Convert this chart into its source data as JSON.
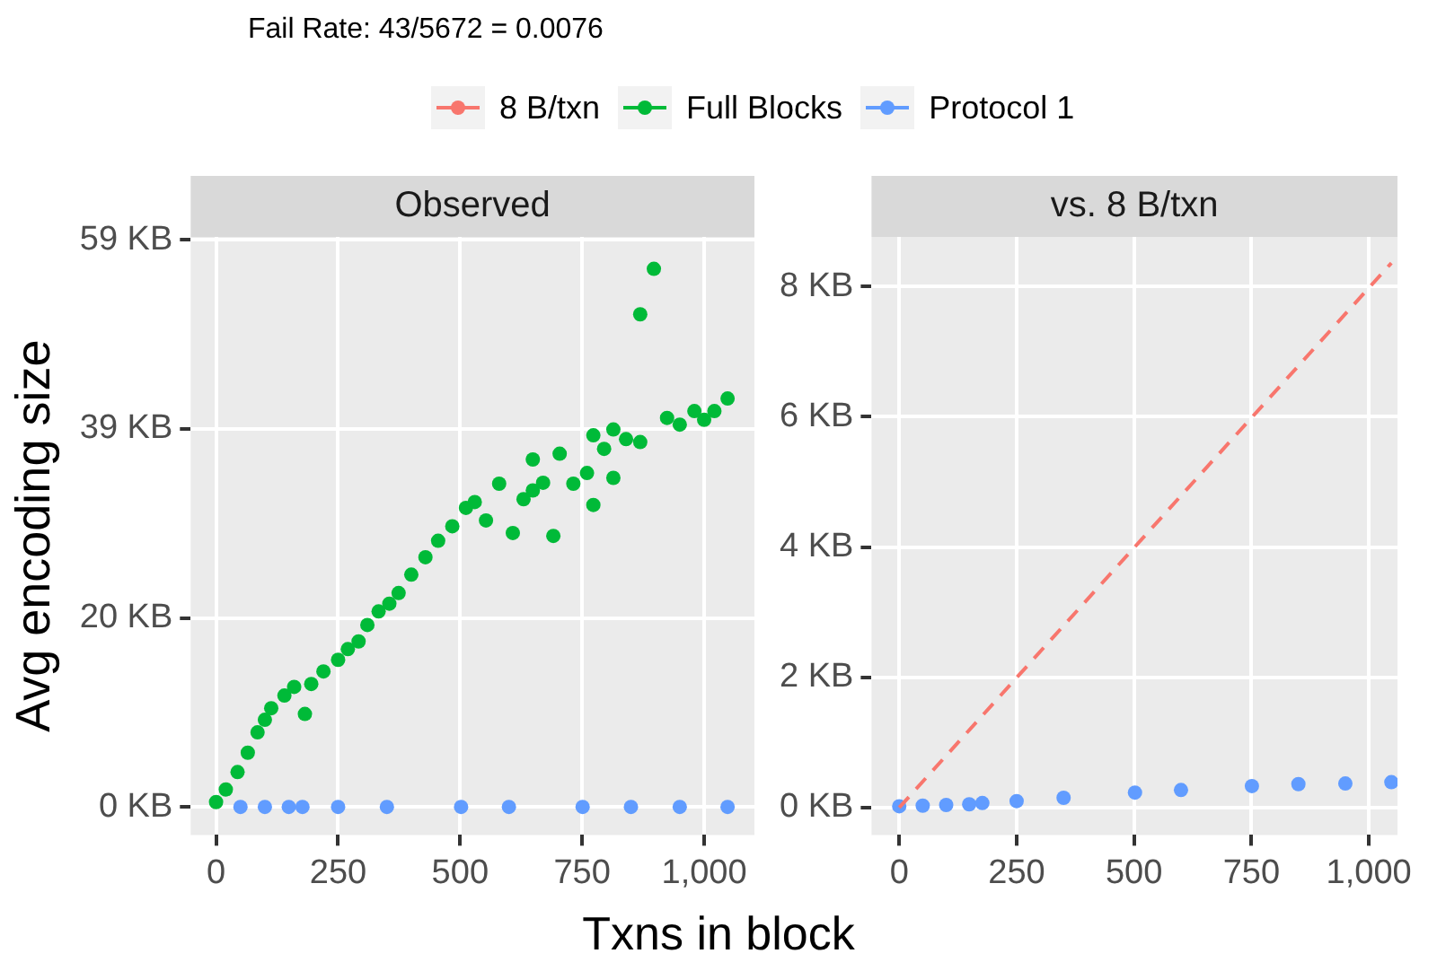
{
  "chart_data": [
    {
      "type": "scatter",
      "title": "Observed",
      "subtitle": "Fail Rate: 43/5672 = 0.0076",
      "xlabel": "Txns in block",
      "ylabel": "Avg encoding size",
      "legend": "top",
      "grid": true,
      "marker": "circle",
      "xlim": [
        -52,
        1103
      ],
      "xticks": [
        0,
        250,
        500,
        750,
        {
          "value": 1000,
          "label": "1,000"
        }
      ],
      "ylim": [
        -2.9,
        58.9
      ],
      "yticks": [
        {
          "value": 0,
          "label": "0 KB"
        },
        {
          "value": 19.53,
          "label": "20 KB"
        },
        {
          "value": 39.06,
          "label": "39 KB"
        },
        {
          "value": 58.59,
          "label": "59 KB"
        }
      ],
      "series": [
        {
          "name": "Full Blocks",
          "color": "#00ba38",
          "x": [
            0,
            20,
            44,
            65,
            85,
            100,
            113,
            140,
            160,
            182,
            195,
            220,
            250,
            270,
            292,
            310,
            333,
            355,
            374,
            400,
            429,
            455,
            484,
            512,
            530,
            553,
            580,
            608,
            630,
            649,
            649,
            670,
            691,
            704,
            732,
            760,
            773,
            773,
            795,
            814,
            814,
            840,
            869,
            869,
            897,
            924,
            950,
            980,
            1000,
            1021,
            1048
          ],
          "values": [
            0.5,
            1.8,
            3.6,
            5.6,
            7.7,
            9.0,
            10.2,
            11.5,
            12.4,
            9.6,
            12.7,
            14.0,
            15.2,
            16.3,
            17.1,
            18.8,
            20.2,
            21.0,
            22.1,
            24.0,
            25.8,
            27.5,
            29.0,
            30.9,
            31.5,
            29.6,
            33.4,
            28.3,
            31.8,
            32.7,
            35.9,
            33.5,
            28.0,
            36.5,
            33.4,
            34.5,
            31.2,
            38.4,
            37.0,
            34.0,
            39.0,
            38.0,
            50.9,
            37.7,
            55.6,
            40.2,
            39.5,
            40.9,
            40.0,
            40.9,
            42.2
          ]
        },
        {
          "name": "Protocol 1",
          "color": "#619cff",
          "x": [
            50,
            100,
            149,
            177,
            250,
            350,
            502,
            600,
            751,
            850,
            950,
            1048
          ],
          "values": [
            0,
            0,
            0,
            0,
            0,
            0,
            0,
            0,
            0,
            0,
            0,
            0
          ]
        }
      ]
    },
    {
      "type": "scatter",
      "title": "vs. 8 B/txn",
      "legend": "top",
      "grid": true,
      "marker": "circle",
      "xlim": [
        -59,
        1061
      ],
      "xticks": [
        0,
        250,
        500,
        750,
        {
          "value": 1000,
          "label": "1,000"
        }
      ],
      "ylim": [
        -0.42,
        8.76
      ],
      "yticks": [
        {
          "value": 0,
          "label": "0 KB"
        },
        {
          "value": 2,
          "label": "2 KB"
        },
        {
          "value": 4,
          "label": "4 KB"
        },
        {
          "value": 6,
          "label": "6 KB"
        },
        {
          "value": 8,
          "label": "8 KB"
        }
      ],
      "series": [
        {
          "name": "8 B/txn",
          "type": "line",
          "color": "#f8766d",
          "marker": "none",
          "line_style": "dashed",
          "x": [
            0,
            1048
          ],
          "values": [
            0,
            8.36
          ]
        },
        {
          "name": "Protocol 1",
          "color": "#619cff",
          "x": [
            0,
            50,
            100,
            149,
            177,
            250,
            350,
            502,
            600,
            751,
            850,
            950,
            1048
          ],
          "values": [
            0.02,
            0.03,
            0.04,
            0.05,
            0.07,
            0.1,
            0.15,
            0.23,
            0.27,
            0.33,
            0.36,
            0.37,
            0.39
          ]
        }
      ]
    }
  ]
}
